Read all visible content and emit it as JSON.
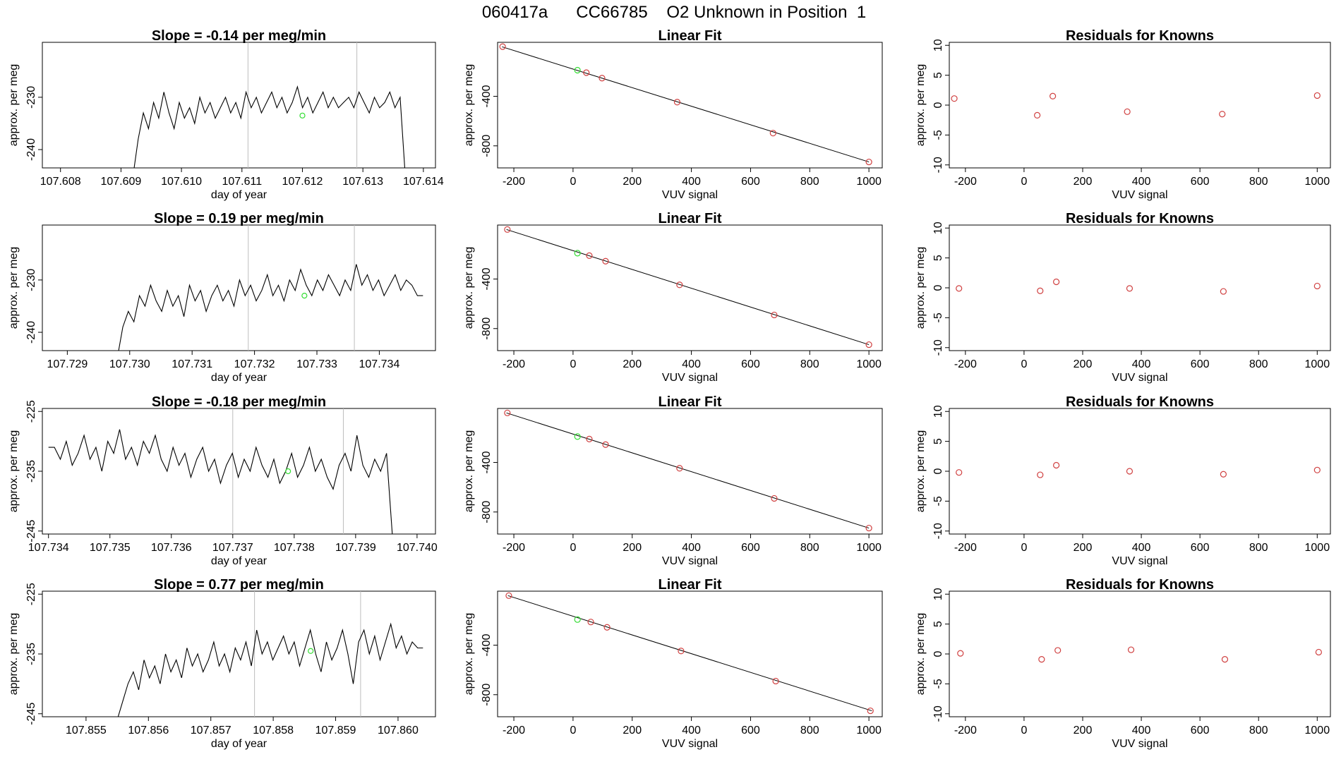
{
  "figure": {
    "title": "060417a      CC66785    O2 Unknown in Position  1"
  },
  "chart_data": [
    {
      "type": "line",
      "panel": "time-series",
      "row": 1,
      "title": "Slope =  -0.14  per meg/min",
      "xlabel": "day of year",
      "ylabel": "approx. per meg",
      "xlim": [
        107.6077,
        107.6142
      ],
      "ylim": [
        -243.5,
        -219.5
      ],
      "xticks": [
        107.608,
        107.609,
        107.61,
        107.611,
        107.612,
        107.613,
        107.614
      ],
      "xtick_labels": [
        "107.608",
        "107.609",
        "107.610",
        "107.611",
        "107.612",
        "107.613",
        "107.614"
      ],
      "yticks": [
        -240,
        -230
      ],
      "ytick_labels": [
        "-240",
        "-230"
      ],
      "vlines": [
        107.6111,
        107.6129
      ],
      "series_start": 107.6092,
      "series_end": 107.6137,
      "series_start_value": -245,
      "series_end_value": -245,
      "trace": [
        -238,
        -233,
        -236,
        -231,
        -234,
        -229,
        -233,
        -236,
        -231,
        -234,
        -232,
        -235,
        -230,
        -233,
        -231,
        -234,
        -232,
        -230,
        -233,
        -231,
        -234,
        -229,
        -232,
        -230,
        -233,
        -231,
        -229,
        -232,
        -230,
        -233,
        -231,
        -228,
        -232,
        -230,
        -233,
        -231,
        -229,
        -232,
        -230,
        -232,
        -231,
        -230,
        -232,
        -229,
        -231,
        -233,
        -230,
        -232,
        -231,
        -229,
        -232,
        -230
      ],
      "highlight": {
        "x": 107.612,
        "y": -233.5
      }
    },
    {
      "type": "line",
      "panel": "linear-fit",
      "row": 1,
      "title": "Linear Fit",
      "xlabel": "VUV signal",
      "ylabel": "approx. per meg",
      "xlim": [
        -255,
        1045
      ],
      "ylim": [
        -978,
        36
      ],
      "xticks": [
        -200,
        0,
        200,
        400,
        600,
        800,
        1000
      ],
      "xtick_labels": [
        "-200",
        "0",
        "200",
        "400",
        "600",
        "800",
        "1000"
      ],
      "yticks": [
        -800,
        -400
      ],
      "ytick_labels": [
        "-800",
        "-400"
      ],
      "fit": {
        "x": [
          -240,
          1000
        ],
        "y": [
          0,
          -930
        ]
      },
      "points": [
        {
          "x": -238,
          "y": 1
        },
        {
          "x": 45,
          "y": -209
        },
        {
          "x": 98,
          "y": -253
        },
        {
          "x": 352,
          "y": -447
        },
        {
          "x": 676,
          "y": -697
        },
        {
          "x": 1000,
          "y": -930
        }
      ],
      "highlight": {
        "x": 15,
        "y": -189
      }
    },
    {
      "type": "scatter",
      "panel": "residuals",
      "row": 1,
      "title": "Residuals for Knowns",
      "xlabel": "VUV signal",
      "ylabel": "approx. per meg",
      "xlim": [
        -255,
        1045
      ],
      "ylim": [
        -10.5,
        10.5
      ],
      "xticks": [
        -200,
        0,
        200,
        400,
        600,
        800,
        1000
      ],
      "xtick_labels": [
        "-200",
        "0",
        "200",
        "400",
        "600",
        "800",
        "1000"
      ],
      "yticks": [
        -10,
        -5,
        0,
        5,
        10
      ],
      "ytick_labels": [
        "-10",
        "-5",
        "0",
        "5",
        "10"
      ],
      "points": [
        {
          "x": -238,
          "y": 1.1
        },
        {
          "x": 45,
          "y": -1.7
        },
        {
          "x": 98,
          "y": 1.5
        },
        {
          "x": 352,
          "y": -1.1
        },
        {
          "x": 676,
          "y": -1.5
        },
        {
          "x": 1000,
          "y": 1.6
        }
      ]
    },
    {
      "type": "line",
      "panel": "time-series",
      "row": 2,
      "title": "Slope =  0.19  per meg/min",
      "xlabel": "day of year",
      "ylabel": "approx. per meg",
      "xlim": [
        107.7286,
        107.7349
      ],
      "ylim": [
        -243.5,
        -219.5
      ],
      "xticks": [
        107.729,
        107.73,
        107.731,
        107.732,
        107.733,
        107.734
      ],
      "xtick_labels": [
        "107.729",
        "107.730",
        "107.731",
        "107.732",
        "107.733",
        "107.734"
      ],
      "yticks": [
        -240,
        -230
      ],
      "ytick_labels": [
        "-240",
        "-230"
      ],
      "vlines": [
        107.7319,
        107.7336
      ],
      "series_start": 107.7298,
      "series_end": 107.7347,
      "series_start_value": -245,
      "series_end_value": -233,
      "trace": [
        -239,
        -236,
        -238,
        -233,
        -235,
        -231,
        -234,
        -236,
        -232,
        -235,
        -233,
        -237,
        -231,
        -234,
        -232,
        -236,
        -233,
        -231,
        -234,
        -232,
        -235,
        -230,
        -233,
        -231,
        -234,
        -232,
        -229,
        -233,
        -231,
        -234,
        -230,
        -232,
        -228,
        -231,
        -233,
        -230,
        -232,
        -229,
        -231,
        -233,
        -230,
        -232,
        -227,
        -231,
        -229,
        -232,
        -230,
        -233,
        -231,
        -229,
        -232,
        -230,
        -231,
        -233
      ],
      "highlight": {
        "x": 107.7328,
        "y": -233
      }
    },
    {
      "type": "line",
      "panel": "linear-fit",
      "row": 2,
      "title": "Linear Fit",
      "xlabel": "VUV signal",
      "ylabel": "approx. per meg",
      "xlim": [
        -255,
        1045
      ],
      "ylim": [
        -978,
        36
      ],
      "xticks": [
        -200,
        0,
        200,
        400,
        600,
        800,
        1000
      ],
      "xtick_labels": [
        "-200",
        "0",
        "200",
        "400",
        "600",
        "800",
        "1000"
      ],
      "yticks": [
        -800,
        -400
      ],
      "ytick_labels": [
        "-800",
        "-400"
      ],
      "fit": {
        "x": [
          -225,
          1000
        ],
        "y": [
          0,
          -930
        ]
      },
      "points": [
        {
          "x": -222,
          "y": 0
        },
        {
          "x": 55,
          "y": -211
        },
        {
          "x": 110,
          "y": -256
        },
        {
          "x": 360,
          "y": -447
        },
        {
          "x": 680,
          "y": -690
        },
        {
          "x": 1000,
          "y": -930
        }
      ],
      "highlight": {
        "x": 15,
        "y": -191
      }
    },
    {
      "type": "scatter",
      "panel": "residuals",
      "row": 2,
      "title": "Residuals for Knowns",
      "xlabel": "VUV signal",
      "ylabel": "approx. per meg",
      "xlim": [
        -255,
        1045
      ],
      "ylim": [
        -10.5,
        10.5
      ],
      "xticks": [
        -200,
        0,
        200,
        400,
        600,
        800,
        1000
      ],
      "xtick_labels": [
        "-200",
        "0",
        "200",
        "400",
        "600",
        "800",
        "1000"
      ],
      "yticks": [
        -10,
        -5,
        0,
        5,
        10
      ],
      "ytick_labels": [
        "-10",
        "-5",
        "0",
        "5",
        "10"
      ],
      "points": [
        {
          "x": -222,
          "y": -0.1
        },
        {
          "x": 55,
          "y": -0.5
        },
        {
          "x": 110,
          "y": 1.0
        },
        {
          "x": 360,
          "y": -0.1
        },
        {
          "x": 680,
          "y": -0.6
        },
        {
          "x": 1000,
          "y": 0.3
        }
      ]
    },
    {
      "type": "line",
      "panel": "time-series",
      "row": 3,
      "title": "Slope =  -0.18  per meg/min",
      "xlabel": "day of year",
      "ylabel": "approx. per meg",
      "xlim": [
        107.7339,
        107.7403
      ],
      "ylim": [
        -245.5,
        -224.5
      ],
      "xticks": [
        107.734,
        107.735,
        107.736,
        107.737,
        107.738,
        107.739,
        107.74
      ],
      "xtick_labels": [
        "107.734",
        "107.735",
        "107.736",
        "107.737",
        "107.738",
        "107.739",
        "107.740"
      ],
      "yticks": [
        -245,
        -235,
        -225
      ],
      "ytick_labels": [
        "-245",
        "-235",
        "-225"
      ],
      "vlines": [
        107.737,
        107.7388
      ],
      "series_start": 107.734,
      "series_end": 107.7396,
      "series_start_value": -231,
      "series_end_value": -246,
      "trace": [
        -231,
        -233,
        -230,
        -234,
        -232,
        -229,
        -233,
        -231,
        -235,
        -230,
        -232,
        -228,
        -233,
        -231,
        -234,
        -230,
        -232,
        -229,
        -233,
        -235,
        -231,
        -234,
        -232,
        -236,
        -233,
        -231,
        -235,
        -233,
        -237,
        -234,
        -232,
        -236,
        -233,
        -235,
        -231,
        -234,
        -236,
        -233,
        -237,
        -235,
        -232,
        -236,
        -234,
        -231,
        -235,
        -233,
        -236,
        -238,
        -234,
        -232,
        -235,
        -229,
        -234,
        -236,
        -233,
        -235,
        -232
      ],
      "highlight": {
        "x": 107.7379,
        "y": -235
      }
    },
    {
      "type": "line",
      "panel": "linear-fit",
      "row": 3,
      "title": "Linear Fit",
      "xlabel": "VUV signal",
      "ylabel": "approx. per meg",
      "xlim": [
        -255,
        1045
      ],
      "ylim": [
        -978,
        36
      ],
      "xticks": [
        -200,
        0,
        200,
        400,
        600,
        800,
        1000
      ],
      "xtick_labels": [
        "-200",
        "0",
        "200",
        "400",
        "600",
        "800",
        "1000"
      ],
      "yticks": [
        -800,
        -400
      ],
      "ytick_labels": [
        "-800",
        "-400"
      ],
      "fit": {
        "x": [
          -225,
          1000
        ],
        "y": [
          0,
          -930
        ]
      },
      "points": [
        {
          "x": -222,
          "y": 0
        },
        {
          "x": 55,
          "y": -211
        },
        {
          "x": 110,
          "y": -256
        },
        {
          "x": 360,
          "y": -447
        },
        {
          "x": 680,
          "y": -690
        },
        {
          "x": 1000,
          "y": -930
        }
      ],
      "highlight": {
        "x": 15,
        "y": -191
      }
    },
    {
      "type": "scatter",
      "panel": "residuals",
      "row": 3,
      "title": "Residuals for Knowns",
      "xlabel": "VUV signal",
      "ylabel": "approx. per meg",
      "xlim": [
        -255,
        1045
      ],
      "ylim": [
        -10.5,
        10.5
      ],
      "xticks": [
        -200,
        0,
        200,
        400,
        600,
        800,
        1000
      ],
      "xtick_labels": [
        "-200",
        "0",
        "200",
        "400",
        "600",
        "800",
        "1000"
      ],
      "yticks": [
        -10,
        -5,
        0,
        5,
        10
      ],
      "ytick_labels": [
        "-10",
        "-5",
        "0",
        "5",
        "10"
      ],
      "points": [
        {
          "x": -222,
          "y": -0.2
        },
        {
          "x": 55,
          "y": -0.6
        },
        {
          "x": 110,
          "y": 1.0
        },
        {
          "x": 360,
          "y": 0.0
        },
        {
          "x": 680,
          "y": -0.5
        },
        {
          "x": 1000,
          "y": 0.2
        }
      ]
    },
    {
      "type": "line",
      "panel": "time-series",
      "row": 4,
      "title": "Slope =  0.77  per meg/min",
      "xlabel": "day of year",
      "ylabel": "approx. per meg",
      "xlim": [
        107.8543,
        107.8606
      ],
      "ylim": [
        -245.5,
        -224.5
      ],
      "xticks": [
        107.855,
        107.856,
        107.857,
        107.858,
        107.859,
        107.86
      ],
      "xtick_labels": [
        "107.855",
        "107.856",
        "107.857",
        "107.858",
        "107.859",
        "107.860"
      ],
      "yticks": [
        -245,
        -235,
        -225
      ],
      "ytick_labels": [
        "-245",
        "-235",
        "-225"
      ],
      "vlines": [
        107.8577,
        107.8594
      ],
      "series_start": 107.8555,
      "series_end": 107.8604,
      "series_start_value": -246,
      "series_end_value": -234,
      "trace": [
        -243,
        -240,
        -238,
        -241,
        -236,
        -239,
        -237,
        -240,
        -235,
        -238,
        -236,
        -239,
        -234,
        -237,
        -235,
        -238,
        -236,
        -233,
        -237,
        -235,
        -238,
        -234,
        -236,
        -233,
        -237,
        -231,
        -235,
        -233,
        -236,
        -234,
        -232,
        -235,
        -233,
        -237,
        -234,
        -231,
        -235,
        -238,
        -233,
        -236,
        -234,
        -231,
        -235,
        -240,
        -233,
        -231,
        -235,
        -232,
        -236,
        -233,
        -230,
        -234,
        -232,
        -235,
        -233,
        -234
      ],
      "highlight": {
        "x": 107.8586,
        "y": -234.5
      }
    },
    {
      "type": "line",
      "panel": "linear-fit",
      "row": 4,
      "title": "Linear Fit",
      "xlabel": "VUV signal",
      "ylabel": "approx. per meg",
      "xlim": [
        -255,
        1045
      ],
      "ylim": [
        -978,
        36
      ],
      "xticks": [
        -200,
        0,
        200,
        400,
        600,
        800,
        1000
      ],
      "xtick_labels": [
        "-200",
        "0",
        "200",
        "400",
        "600",
        "800",
        "1000"
      ],
      "yticks": [
        -800,
        -400
      ],
      "ytick_labels": [
        "-800",
        "-400"
      ],
      "fit": {
        "x": [
          -220,
          1010
        ],
        "y": [
          0,
          -930
        ]
      },
      "points": [
        {
          "x": -217,
          "y": 0
        },
        {
          "x": 60,
          "y": -213
        },
        {
          "x": 115,
          "y": -256
        },
        {
          "x": 365,
          "y": -447
        },
        {
          "x": 685,
          "y": -690
        },
        {
          "x": 1005,
          "y": -930
        }
      ],
      "highlight": {
        "x": 15,
        "y": -193
      }
    },
    {
      "type": "scatter",
      "panel": "residuals",
      "row": 4,
      "title": "Residuals for Knowns",
      "xlabel": "VUV signal",
      "ylabel": "approx. per meg",
      "xlim": [
        -255,
        1045
      ],
      "ylim": [
        -10.5,
        10.5
      ],
      "xticks": [
        -200,
        0,
        200,
        400,
        600,
        800,
        1000
      ],
      "xtick_labels": [
        "-200",
        "0",
        "200",
        "400",
        "600",
        "800",
        "1000"
      ],
      "yticks": [
        -10,
        -5,
        0,
        5,
        10
      ],
      "ytick_labels": [
        "-10",
        "-5",
        "0",
        "5",
        "10"
      ],
      "points": [
        {
          "x": -217,
          "y": 0.1
        },
        {
          "x": 60,
          "y": -0.9
        },
        {
          "x": 115,
          "y": 0.6
        },
        {
          "x": 365,
          "y": 0.7
        },
        {
          "x": 685,
          "y": -0.9
        },
        {
          "x": 1005,
          "y": 0.3
        }
      ]
    }
  ]
}
